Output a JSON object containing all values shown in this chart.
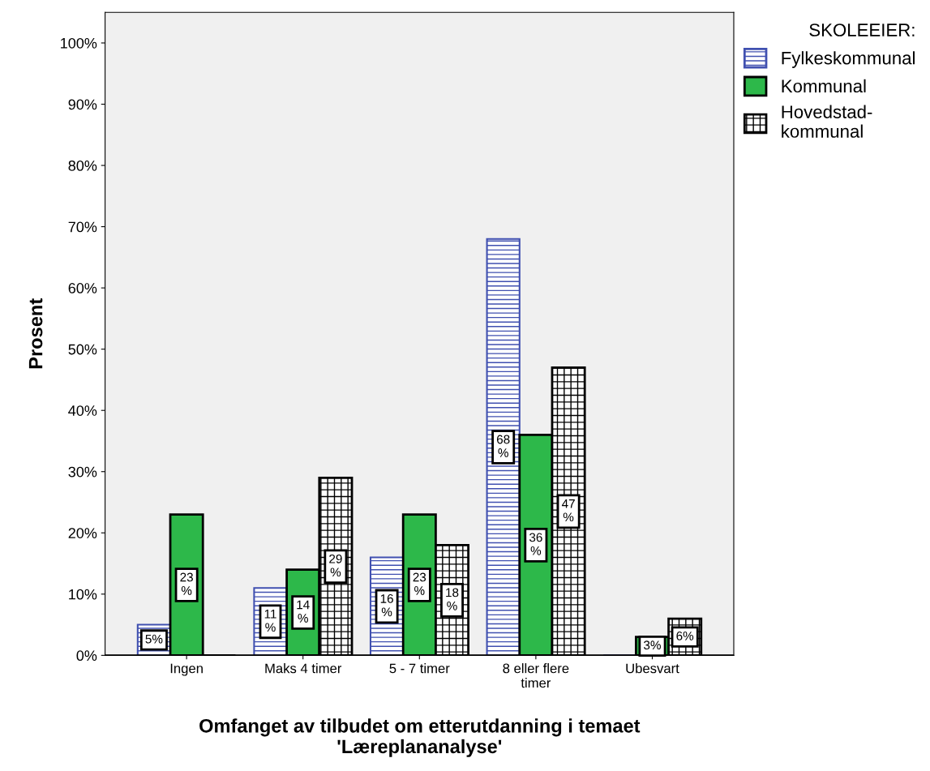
{
  "chart_data": {
    "type": "bar",
    "xlabel": "Omfanget av tilbudet om etterutdanning i temaet\n'Læreplananalyse'",
    "ylabel": "Prosent",
    "legend_title": "SKOLEEIER:",
    "categories": [
      "Ingen",
      "Maks 4 timer",
      "5 - 7 timer",
      "8 eller flere\ntimer",
      "Ubesvart"
    ],
    "series": [
      {
        "name": "Fylkeskommunal",
        "color": "#4050b0",
        "values": [
          5,
          11,
          16,
          68,
          0
        ],
        "value_labels": [
          "5%",
          "11\n%",
          "16\n%",
          "68\n%",
          null
        ]
      },
      {
        "name": "Kommunal",
        "color": "#2db84a",
        "values": [
          23,
          14,
          23,
          36,
          3
        ],
        "value_labels": [
          "23\n%",
          "14\n%",
          "23\n%",
          "36\n%",
          "3%"
        ]
      },
      {
        "name": "Hovedstad-\nkommunal",
        "color": "#000000",
        "values": [
          0,
          29,
          18,
          47,
          6
        ],
        "value_labels": [
          null,
          "29\n%",
          "18\n%",
          "47\n%",
          "6%"
        ]
      }
    ],
    "ylim": [
      0,
      105
    ],
    "yticks": [
      {
        "value": 0,
        "label": "0%"
      },
      {
        "value": 10,
        "label": "10%"
      },
      {
        "value": 20,
        "label": "20%"
      },
      {
        "value": 30,
        "label": "30%"
      },
      {
        "value": 40,
        "label": "40%"
      },
      {
        "value": 50,
        "label": "50%"
      },
      {
        "value": 60,
        "label": "60%"
      },
      {
        "value": 70,
        "label": "70%"
      },
      {
        "value": 80,
        "label": "80%"
      },
      {
        "value": 90,
        "label": "90%"
      },
      {
        "value": 100,
        "label": "100%"
      }
    ],
    "grid": false,
    "legend": "top right"
  }
}
